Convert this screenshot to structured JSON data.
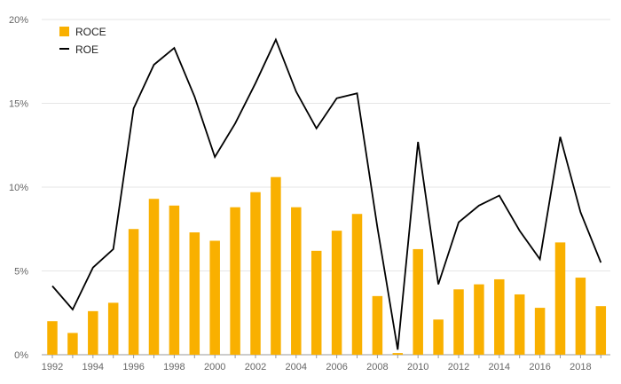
{
  "chart_data": {
    "type": "bar",
    "title": "",
    "xlabel": "",
    "ylabel": "",
    "x": [
      1992,
      1993,
      1994,
      1995,
      1996,
      1997,
      1998,
      1999,
      2000,
      2001,
      2002,
      2003,
      2004,
      2005,
      2006,
      2007,
      2008,
      2009,
      2010,
      2011,
      2012,
      2013,
      2014,
      2015,
      2016,
      2017,
      2018,
      2019
    ],
    "x_tick_labels": [
      "1992",
      "1994",
      "1996",
      "1998",
      "2000",
      "2002",
      "2004",
      "2006",
      "2008",
      "2010",
      "2012",
      "2014",
      "2016",
      "2018"
    ],
    "ylim": [
      0,
      20
    ],
    "y_ticks": [
      0,
      5,
      10,
      15,
      20
    ],
    "y_tick_labels": [
      "0%",
      "5%",
      "10%",
      "15%",
      "20%"
    ],
    "grid": true,
    "legend_position": "top-left",
    "series": [
      {
        "name": "ROCE",
        "type": "bar",
        "color": "#F9B000",
        "values": [
          2.0,
          1.3,
          2.6,
          3.1,
          7.5,
          9.3,
          8.9,
          7.3,
          6.8,
          8.8,
          9.7,
          10.6,
          8.8,
          6.2,
          7.4,
          8.4,
          3.5,
          0.1,
          6.3,
          2.1,
          3.9,
          4.2,
          4.5,
          3.6,
          2.8,
          6.7,
          4.6,
          2.9
        ]
      },
      {
        "name": "ROE",
        "type": "line",
        "color": "#000000",
        "values": [
          4.1,
          2.7,
          5.2,
          6.3,
          14.7,
          17.3,
          18.3,
          15.4,
          11.8,
          13.8,
          16.2,
          18.8,
          15.7,
          13.5,
          15.3,
          15.6,
          7.6,
          0.3,
          12.7,
          4.2,
          7.9,
          8.9,
          9.5,
          7.4,
          5.7,
          13.0,
          8.5,
          5.5
        ]
      }
    ]
  }
}
